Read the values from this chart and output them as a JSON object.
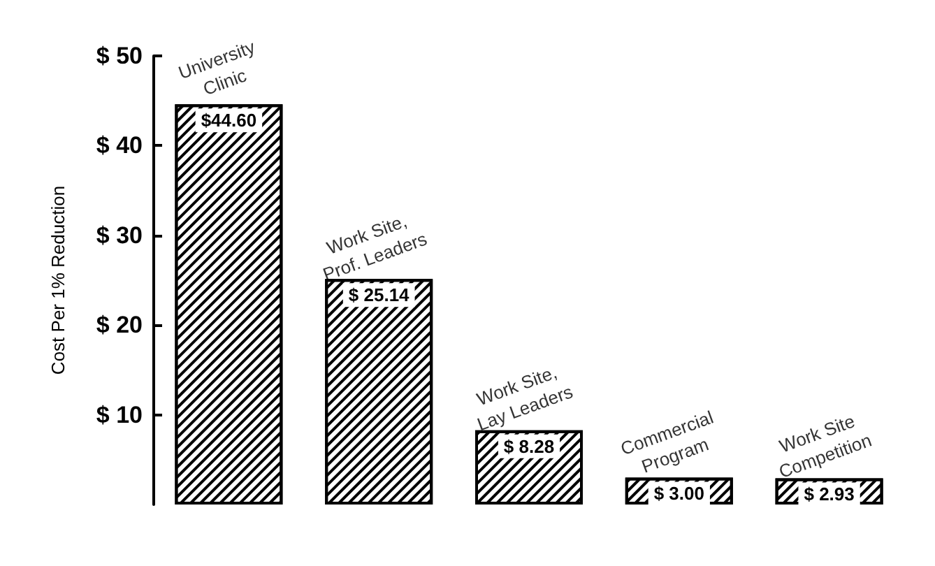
{
  "chart_data": {
    "type": "bar",
    "ylabel": "Cost Per 1% Reduction",
    "categories": [
      "University\nClinic",
      "Work Site,\nProf. Leaders",
      "Work Site,\nLay Leaders",
      "Commercial\nProgram",
      "Work Site\nCompetition"
    ],
    "values": [
      44.6,
      25.14,
      8.28,
      3.0,
      2.93
    ],
    "value_labels": [
      "$44.60",
      "$ 25.14",
      "$ 8.28",
      "$ 3.00",
      "$ 2.93"
    ],
    "color": "#ffffff",
    "ylim": [
      0,
      50
    ],
    "yticks": [
      {
        "value": 10,
        "label": "$ 10"
      },
      {
        "value": 20,
        "label": "$ 20"
      },
      {
        "value": 30,
        "label": "$ 30"
      },
      {
        "value": 40,
        "label": "$ 40"
      },
      {
        "value": 50,
        "label": "$ 50"
      }
    ],
    "grid": false
  }
}
